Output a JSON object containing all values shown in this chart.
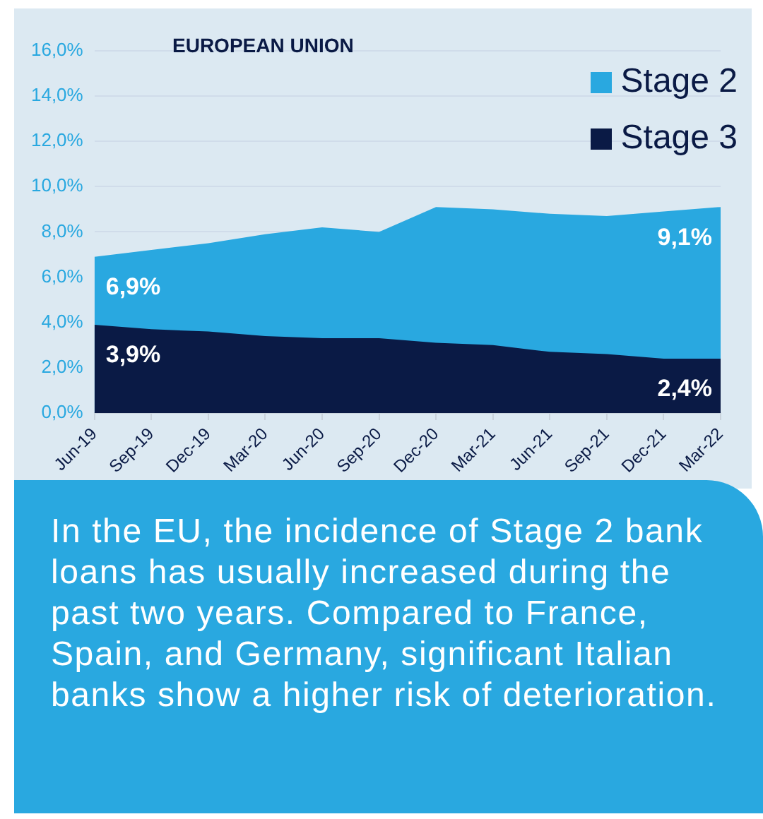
{
  "chart_data": {
    "type": "area",
    "title": "EUROPEAN UNION",
    "categories": [
      "Jun-19",
      "Sep-19",
      "Dec-19",
      "Mar-20",
      "Jun-20",
      "Sep-20",
      "Dec-20",
      "Mar-21",
      "Jun-21",
      "Sep-21",
      "Dec-21",
      "Mar-22"
    ],
    "series": [
      {
        "name": "Stage 2",
        "color": "#29a8e0",
        "values": [
          6.9,
          7.2,
          7.5,
          7.9,
          8.2,
          8.0,
          9.1,
          9.0,
          8.8,
          8.7,
          8.9,
          9.1
        ],
        "value_labels": [
          "6,9%",
          null,
          null,
          null,
          null,
          null,
          null,
          null,
          null,
          null,
          null,
          "9,1%"
        ]
      },
      {
        "name": "Stage 3",
        "color": "#0a1a45",
        "values": [
          3.9,
          3.7,
          3.6,
          3.4,
          3.3,
          3.3,
          3.1,
          3.0,
          2.7,
          2.6,
          2.4,
          2.4
        ],
        "value_labels": [
          "3,9%",
          null,
          null,
          null,
          null,
          null,
          null,
          null,
          null,
          null,
          null,
          "2,4%"
        ]
      }
    ],
    "ylim": [
      0,
      16
    ],
    "yticks": [
      {
        "value": 0,
        "label": "0,0%"
      },
      {
        "value": 2,
        "label": "2,0%"
      },
      {
        "value": 4,
        "label": "4,0%"
      },
      {
        "value": 6,
        "label": "6,0%"
      },
      {
        "value": 8,
        "label": "8,0%"
      },
      {
        "value": 10,
        "label": "10,0%"
      },
      {
        "value": 12,
        "label": "12,0%"
      },
      {
        "value": 14,
        "label": "14,0%"
      },
      {
        "value": 16,
        "label": "16,0%"
      }
    ],
    "grid": "y",
    "legend": "top right",
    "annotations": [
      "In the EU, the incidence of Stage 2 bank loans has usually increased during the past two years. Compared to France, Spain, and Germany, significant Italian banks show a higher risk of deterioration."
    ]
  }
}
